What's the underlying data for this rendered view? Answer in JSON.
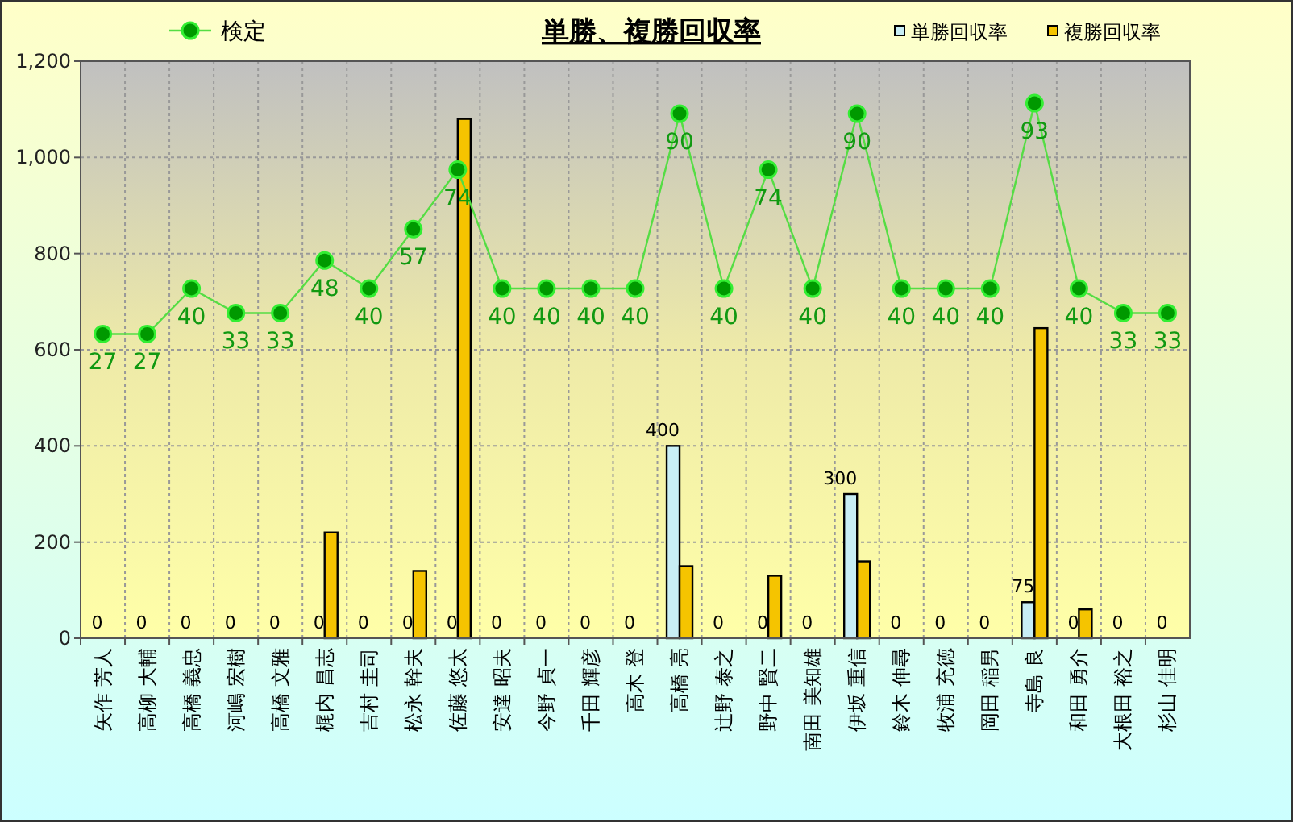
{
  "chart_data": {
    "type": "bar",
    "title": "単勝、複勝回収率",
    "categories": [
      "矢作 芳人",
      "高柳 大輔",
      "高橋 義忠",
      "河嶋 宏樹",
      "高橋 文雅",
      "梶内 昌志",
      "吉村 圭司",
      "松永 幹夫",
      "佐藤 悠太",
      "安達 昭夫",
      "今野 貞一",
      "千田 輝彦",
      "高木 登",
      "高橋 亮",
      "辻野 泰之",
      "野中 賢二",
      "南田 美知雄",
      "伊坂 重信",
      "鈴木 伸尋",
      "牧浦 充徳",
      "岡田 稲男",
      "寺島 良",
      "和田 勇介",
      "大根田 裕之",
      "杉山 佳明"
    ],
    "series": [
      {
        "name": "単勝回収率",
        "color": "#c8eef5",
        "values": [
          0,
          0,
          0,
          0,
          0,
          0,
          0,
          0,
          0,
          0,
          0,
          0,
          0,
          400,
          0,
          0,
          0,
          300,
          0,
          0,
          0,
          75,
          0,
          0,
          0
        ],
        "value_labels": [
          "0",
          "0",
          "0",
          "0",
          "0",
          "0",
          "0",
          "0",
          "0",
          "0",
          "0",
          "0",
          "0",
          "400",
          "0",
          "0",
          "0",
          "300",
          "0",
          "0",
          "0",
          "75",
          "0",
          "0",
          "0"
        ]
      },
      {
        "name": "複勝回収率",
        "color": "#f5c400",
        "values": [
          0,
          0,
          0,
          0,
          0,
          220,
          0,
          140,
          1080,
          0,
          0,
          0,
          0,
          150,
          0,
          130,
          0,
          160,
          0,
          0,
          0,
          645,
          60,
          0,
          0
        ]
      },
      {
        "name": "検定",
        "type": "line",
        "axis": "y2",
        "color": "#55dd44",
        "marker": "circle",
        "values": [
          27,
          27,
          40,
          33,
          33,
          48,
          40,
          57,
          74,
          40,
          40,
          40,
          40,
          90,
          40,
          74,
          40,
          90,
          40,
          40,
          40,
          93,
          40,
          33,
          33
        ],
        "value_labels": [
          "27",
          "27",
          "40",
          "33",
          "33",
          "48",
          "40",
          "57",
          "74",
          "40",
          "40",
          "40",
          "40",
          "90",
          "40",
          "74",
          "40",
          "90",
          "40",
          "40",
          "40",
          "93",
          "40",
          "33",
          "33"
        ]
      }
    ],
    "ylim": [
      0,
      1200
    ],
    "yticks": [
      0,
      200,
      400,
      600,
      800,
      {
        "value": 1000,
        "label": "1,000"
      },
      {
        "value": 1200,
        "label": "1,200"
      }
    ],
    "y2lim": [
      -60,
      105
    ],
    "grid": true,
    "legend": "top"
  }
}
